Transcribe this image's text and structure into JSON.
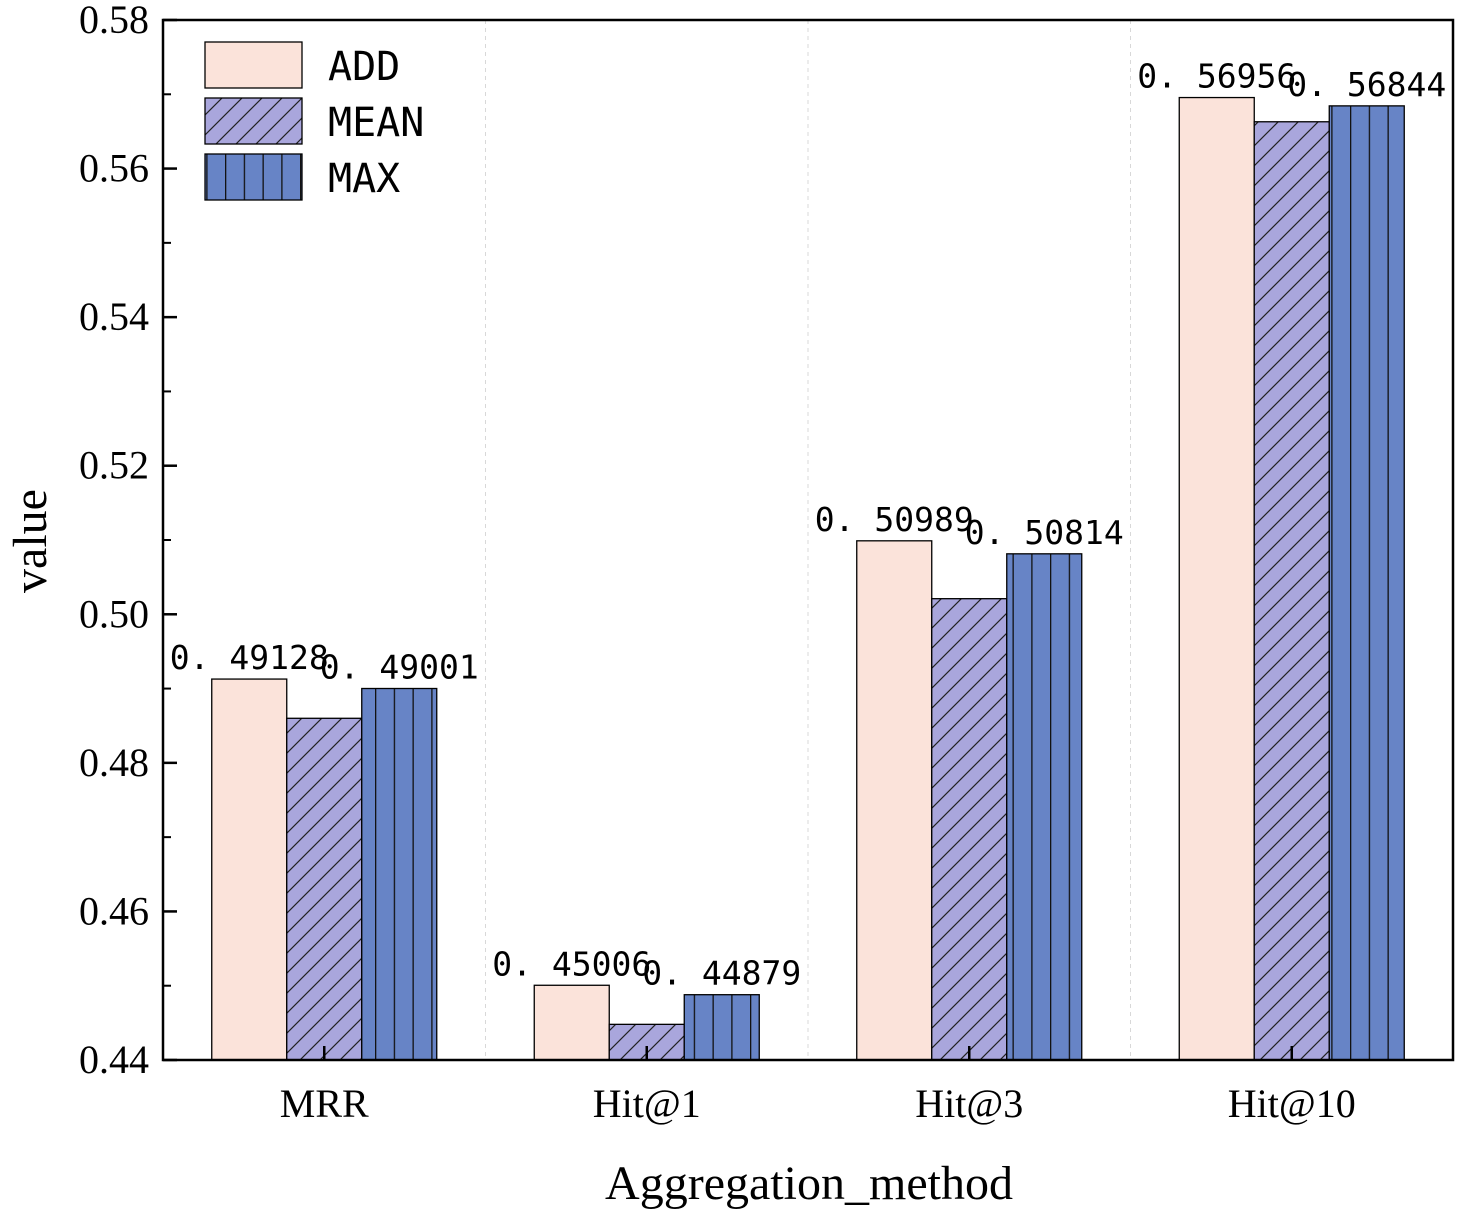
{
  "chart_data": {
    "type": "bar",
    "xlabel": "Aggregation_method",
    "ylabel": "value",
    "categories": [
      "MRR",
      "Hit@1",
      "Hit@3",
      "Hit@10"
    ],
    "ylim": [
      0.44,
      0.58
    ],
    "yticks": [
      "0.44",
      "0.46",
      "0.48",
      "0.50",
      "0.52",
      "0.54",
      "0.56",
      "0.58"
    ],
    "grid": "vertical dashed between categories",
    "legend_position": "top-left",
    "series": [
      {
        "name": "ADD",
        "values": [
          0.49128,
          0.45006,
          0.50989,
          0.56956
        ],
        "color": "#fbe3da",
        "pattern": "none"
      },
      {
        "name": "MEAN",
        "values": [
          0.486,
          0.4448,
          0.5021,
          0.5663
        ],
        "color": "#a9a6dc",
        "pattern": "diagonal-hatch"
      },
      {
        "name": "MAX",
        "values": [
          0.49001,
          0.44879,
          0.50814,
          0.56844
        ],
        "color": "#6784c6",
        "pattern": "vertical-lines"
      }
    ],
    "data_labels": [
      {
        "category": "MRR",
        "series": "ADD",
        "text": "0. 49128"
      },
      {
        "category": "MRR",
        "series": "MAX",
        "text": "0. 49001"
      },
      {
        "category": "Hit@1",
        "series": "ADD",
        "text": "0. 45006"
      },
      {
        "category": "Hit@1",
        "series": "MAX",
        "text": "0. 44879"
      },
      {
        "category": "Hit@3",
        "series": "ADD",
        "text": "0. 50989"
      },
      {
        "category": "Hit@3",
        "series": "MAX",
        "text": "0. 50814"
      },
      {
        "category": "Hit@10",
        "series": "ADD",
        "text": "0. 56956"
      },
      {
        "category": "Hit@10",
        "series": "MAX",
        "text": "0. 56844"
      }
    ]
  }
}
